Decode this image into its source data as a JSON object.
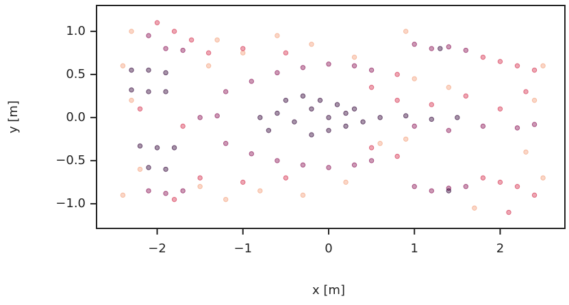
{
  "chart_data": {
    "type": "scatter",
    "xlabel": "x [m]",
    "ylabel": "y [m]",
    "xlim": [
      -2.707,
      2.755
    ],
    "ylim": [
      -1.286,
      1.3
    ],
    "xticks": [
      {
        "value": -2,
        "label": "−2"
      },
      {
        "value": -1,
        "label": "−1"
      },
      0,
      1,
      2
    ],
    "yticks": [
      {
        "value": -1,
        "label": "−1.0"
      },
      {
        "value": -0.5,
        "label": "−0.5"
      },
      {
        "value": 0,
        "label": "0.0"
      },
      {
        "value": 0.5,
        "label": "0.5"
      },
      {
        "value": 1,
        "label": "1.0"
      }
    ],
    "series": [
      {
        "color": "#f4a582",
        "x": [
          -2.4,
          -2.3,
          -2.2,
          -2.4,
          -2.3,
          -1.3,
          -1.0,
          -0.6,
          -0.2,
          0.3,
          -1.2,
          -0.8,
          -0.3,
          0.2,
          2.5,
          2.4,
          2.3,
          2.5,
          1.0,
          1.4,
          0.6,
          0.9,
          -1.4,
          -1.5,
          0.9,
          1.7
        ],
        "values": [
          0.6,
          0.2,
          -0.6,
          -0.9,
          1.0,
          0.9,
          0.75,
          0.95,
          0.85,
          0.7,
          -0.95,
          -0.85,
          -0.9,
          -0.75,
          0.6,
          0.2,
          -0.4,
          -0.7,
          0.45,
          0.35,
          -0.3,
          -0.25,
          0.6,
          -0.8,
          1.0,
          -1.05
        ]
      },
      {
        "color": "#d63a57",
        "x": [
          -2.0,
          -1.8,
          -1.6,
          -1.4,
          -2.2,
          -1.7,
          1.8,
          2.0,
          2.2,
          2.4,
          1.8,
          2.0,
          2.2,
          2.4,
          0.8,
          1.2,
          1.6,
          2.0,
          -1.0,
          -0.5,
          0.5,
          0.8,
          -1.0,
          -0.5,
          0.5,
          0.8,
          -1.8,
          -1.5,
          2.1,
          2.3
        ],
        "values": [
          1.1,
          1.0,
          0.9,
          0.75,
          0.1,
          -0.1,
          0.7,
          0.65,
          0.6,
          0.55,
          -0.7,
          -0.75,
          -0.8,
          -0.9,
          0.2,
          0.15,
          0.25,
          0.1,
          0.8,
          0.75,
          0.35,
          0.5,
          -0.75,
          -0.7,
          -0.35,
          -0.45,
          -0.95,
          -0.7,
          -1.1,
          0.3
        ]
      },
      {
        "color": "#8e1d5c",
        "x": [
          -1.2,
          -0.9,
          -0.6,
          -0.3,
          0.0,
          0.3,
          0.5,
          -1.2,
          -0.9,
          -0.6,
          -0.3,
          0.0,
          0.3,
          0.5,
          1.0,
          1.2,
          1.4,
          1.6,
          1.0,
          1.2,
          1.4,
          1.6,
          -2.1,
          -1.9,
          -1.7,
          -2.1,
          -1.9,
          -1.7,
          1.0,
          1.4,
          1.8,
          2.2,
          2.4,
          -1.5,
          -1.3
        ],
        "values": [
          0.3,
          0.42,
          0.52,
          0.58,
          0.62,
          0.6,
          0.55,
          -0.3,
          -0.42,
          -0.5,
          -0.55,
          -0.58,
          -0.55,
          -0.5,
          0.85,
          0.8,
          0.82,
          0.78,
          -0.8,
          -0.85,
          -0.82,
          -0.8,
          0.95,
          0.8,
          0.78,
          -0.85,
          -0.88,
          -0.85,
          -0.1,
          -0.15,
          -0.1,
          -0.12,
          -0.08,
          0.0,
          0.02
        ]
      },
      {
        "color": "#3b0f40",
        "x": [
          -0.8,
          -0.6,
          -0.4,
          -0.2,
          0,
          0.2,
          0.4,
          -0.5,
          -0.3,
          -0.1,
          0.1,
          0.3,
          -0.7,
          -0.2,
          0.0,
          0.2,
          -2.3,
          -2.1,
          -1.9,
          -2.2,
          -2.0,
          -1.8,
          -2.3,
          -2.1,
          -1.9,
          -2.1,
          -1.9,
          0.6,
          0.9,
          1.2,
          1.5,
          1.3,
          1.4
        ],
        "values": [
          0.0,
          0.05,
          -0.05,
          0.1,
          0.0,
          0.05,
          -0.05,
          0.2,
          0.25,
          0.2,
          0.15,
          0.1,
          -0.15,
          -0.2,
          -0.15,
          -0.1,
          0.32,
          0.3,
          0.3,
          -0.33,
          -0.35,
          -0.35,
          0.55,
          0.55,
          0.52,
          -0.58,
          -0.6,
          0.0,
          0.02,
          -0.02,
          0.0,
          0.8,
          -0.85
        ]
      }
    ]
  }
}
